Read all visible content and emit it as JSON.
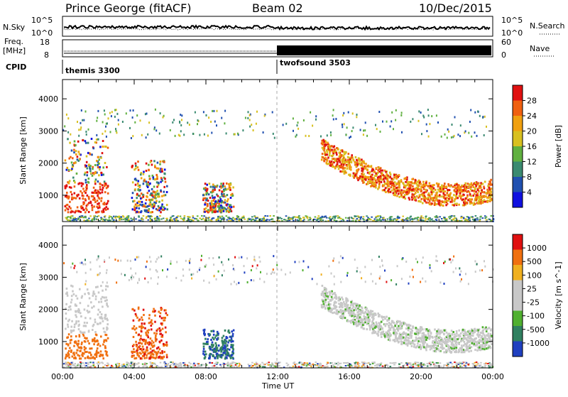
{
  "header": {
    "station": "Prince George (fitACF)",
    "beam": "Beam 02",
    "date": "10/Dec/2015"
  },
  "noise_panel": {
    "left_label": "N.Sky",
    "right_label": "N.Search",
    "left_ticks": [
      "10^5",
      "10^0"
    ],
    "right_ticks": [
      "10^5",
      "10^0"
    ]
  },
  "freq_panel": {
    "left_label_line1": "Freq.",
    "left_label_line2": "[MHz]",
    "left_ticks": [
      "18",
      "8"
    ],
    "right_label": "Nave",
    "right_ticks": [
      "60",
      "0"
    ]
  },
  "cpid_panel": {
    "label": "CPID",
    "modes": [
      {
        "name": "themis 3300",
        "start_hour": 0
      },
      {
        "name": "twofsound 3503",
        "start_hour": 12
      }
    ]
  },
  "x_axis": {
    "label": "Time UT",
    "ticks": [
      "00:00",
      "04:00",
      "08:00",
      "12:00",
      "16:00",
      "20:00",
      "00:00"
    ]
  },
  "chart_data": [
    {
      "type": "heatmap",
      "name": "power",
      "ylabel": "Slant Range [km]",
      "ylim": [
        180,
        4600
      ],
      "xlim": [
        0,
        24
      ],
      "y_ticks": [
        1000,
        2000,
        3000,
        4000
      ],
      "colorbar": {
        "label": "Power [dB]",
        "ticks": [
          "4",
          "8",
          "12",
          "16",
          "20",
          "24",
          "28"
        ],
        "colors": [
          "#1010e0",
          "#2050b0",
          "#3a8a70",
          "#60b040",
          "#d8c020",
          "#f0a010",
          "#f06010",
          "#e01010"
        ]
      },
      "features": [
        {
          "label": "dawn_flare",
          "t0": 0.1,
          "t1": 2.5,
          "r0": 500,
          "r1": 2800
        },
        {
          "label": "noon_cluster_a",
          "t0": 3.8,
          "t1": 5.8,
          "r0": 500,
          "r1": 2100
        },
        {
          "label": "noon_cluster_b",
          "t0": 7.8,
          "t1": 9.5,
          "r0": 500,
          "r1": 1400
        },
        {
          "label": "post_noon_arc",
          "t0": 14.4,
          "t1": 23.9,
          "r0": 800,
          "r1": 2700
        }
      ]
    },
    {
      "type": "heatmap",
      "name": "velocity",
      "ylabel": "Slant Range [km]",
      "ylim": [
        180,
        4600
      ],
      "xlim": [
        0,
        24
      ],
      "y_ticks": [
        1000,
        2000,
        3000,
        4000
      ],
      "colorbar": {
        "label": "Velocity [m s^-1]",
        "ticks": [
          "1000",
          "500",
          "100",
          "25",
          "-25",
          "-100",
          "-500",
          "-1000"
        ],
        "colors": [
          "#2040c0",
          "#308060",
          "#50b030",
          "#c8c8c8",
          "#c8c8c8",
          "#f0b020",
          "#f07010",
          "#e01010"
        ]
      }
    }
  ]
}
